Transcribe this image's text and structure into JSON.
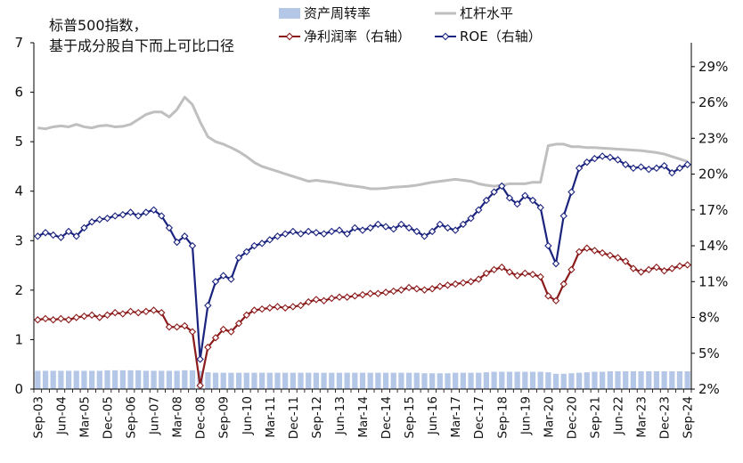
{
  "chart_data": {
    "type": "combo",
    "title": [
      "标普500指数，",
      "基于成分股自下而上可比口径"
    ],
    "categories": [
      "Sep-03",
      "Dec-03",
      "Mar-04",
      "Jun-04",
      "Sep-04",
      "Dec-04",
      "Mar-05",
      "Jun-05",
      "Sep-05",
      "Dec-05",
      "Mar-06",
      "Jun-06",
      "Sep-06",
      "Dec-06",
      "Mar-07",
      "Jun-07",
      "Sep-07",
      "Dec-07",
      "Mar-08",
      "Jun-08",
      "Sep-08",
      "Dec-08",
      "Mar-09",
      "Jun-09",
      "Sep-09",
      "Dec-09",
      "Mar-10",
      "Jun-10",
      "Sep-10",
      "Dec-10",
      "Mar-11",
      "Jun-11",
      "Sep-11",
      "Dec-11",
      "Mar-12",
      "Jun-12",
      "Sep-12",
      "Dec-12",
      "Mar-13",
      "Jun-13",
      "Sep-13",
      "Dec-13",
      "Mar-14",
      "Jun-14",
      "Sep-14",
      "Dec-14",
      "Mar-15",
      "Jun-15",
      "Sep-15",
      "Dec-15",
      "Mar-16",
      "Jun-16",
      "Sep-16",
      "Dec-16",
      "Mar-17",
      "Jun-17",
      "Sep-17",
      "Dec-17",
      "Mar-18",
      "Jun-18",
      "Sep-18",
      "Dec-18",
      "Mar-19",
      "Jun-19",
      "Sep-19",
      "Dec-19",
      "Mar-20",
      "Jun-20",
      "Sep-20",
      "Dec-20",
      "Mar-21",
      "Jun-21",
      "Sep-21",
      "Dec-21",
      "Mar-22",
      "Jun-22",
      "Sep-22",
      "Dec-22",
      "Mar-23",
      "Jun-23",
      "Sep-23",
      "Dec-23",
      "Mar-24",
      "Jun-24",
      "Sep-24"
    ],
    "x_tick_labels": [
      "Sep-03",
      "Jun-04",
      "Mar-05",
      "Dec-05",
      "Sep-06",
      "Jun-07",
      "Mar-08",
      "Dec-08",
      "Sep-09",
      "Jun-10",
      "Mar-11",
      "Dec-11",
      "Sep-12",
      "Jun-13",
      "Mar-14",
      "Dec-14",
      "Sep-15",
      "Jun-16",
      "Mar-17",
      "Dec-17",
      "Sep-18",
      "Jun-19",
      "Mar-20",
      "Dec-20",
      "Sep-21",
      "Jun-22",
      "Mar-23",
      "Dec-23",
      "Sep-24"
    ],
    "left_axis": {
      "ylim": [
        0,
        7
      ],
      "ticks": [
        "0",
        "1",
        "2",
        "3",
        "4",
        "5",
        "6",
        "7"
      ]
    },
    "right_axis": {
      "ylim": [
        0.02,
        0.31
      ],
      "ticks": [
        "2%",
        "5%",
        "8%",
        "11%",
        "14%",
        "17%",
        "20%",
        "23%",
        "26%",
        "29%"
      ],
      "tick_values": [
        0.02,
        0.05,
        0.08,
        0.11,
        0.14,
        0.17,
        0.2,
        0.23,
        0.26,
        0.29
      ]
    },
    "series": [
      {
        "name": "资产周转率",
        "type": "bar",
        "axis": "left",
        "color": "#b4c7e7",
        "values": [
          0.37,
          0.37,
          0.37,
          0.37,
          0.37,
          0.37,
          0.37,
          0.37,
          0.37,
          0.38,
          0.38,
          0.38,
          0.38,
          0.38,
          0.37,
          0.37,
          0.37,
          0.37,
          0.37,
          0.38,
          0.38,
          0.37,
          0.34,
          0.33,
          0.33,
          0.33,
          0.33,
          0.33,
          0.33,
          0.33,
          0.33,
          0.33,
          0.33,
          0.33,
          0.33,
          0.33,
          0.33,
          0.33,
          0.33,
          0.33,
          0.33,
          0.33,
          0.33,
          0.33,
          0.33,
          0.33,
          0.33,
          0.33,
          0.33,
          0.33,
          0.32,
          0.32,
          0.32,
          0.32,
          0.33,
          0.33,
          0.33,
          0.33,
          0.34,
          0.35,
          0.35,
          0.35,
          0.35,
          0.35,
          0.35,
          0.35,
          0.34,
          0.31,
          0.31,
          0.32,
          0.33,
          0.34,
          0.35,
          0.35,
          0.36,
          0.36,
          0.36,
          0.36,
          0.36,
          0.36,
          0.36,
          0.36,
          0.36,
          0.36,
          0.36
        ]
      },
      {
        "name": "杠杆水平",
        "type": "line",
        "axis": "left",
        "color": "#bfbfbf",
        "values": [
          5.28,
          5.26,
          5.3,
          5.32,
          5.3,
          5.35,
          5.3,
          5.28,
          5.32,
          5.33,
          5.3,
          5.31,
          5.35,
          5.45,
          5.55,
          5.6,
          5.6,
          5.5,
          5.65,
          5.9,
          5.75,
          5.4,
          5.1,
          5.0,
          4.95,
          4.88,
          4.8,
          4.7,
          4.58,
          4.5,
          4.45,
          4.4,
          4.35,
          4.3,
          4.25,
          4.2,
          4.22,
          4.2,
          4.18,
          4.15,
          4.12,
          4.1,
          4.08,
          4.05,
          4.05,
          4.06,
          4.08,
          4.09,
          4.1,
          4.12,
          4.15,
          4.18,
          4.2,
          4.22,
          4.24,
          4.22,
          4.2,
          4.15,
          4.12,
          4.1,
          4.12,
          4.15,
          4.15,
          4.15,
          4.18,
          4.18,
          4.92,
          4.95,
          4.95,
          4.9,
          4.9,
          4.88,
          4.88,
          4.87,
          4.86,
          4.85,
          4.84,
          4.83,
          4.82,
          4.8,
          4.78,
          4.75,
          4.7,
          4.65,
          4.6
        ]
      },
      {
        "name": "净利润率（右轴）",
        "type": "line",
        "axis": "right",
        "color": "#8b1a1a",
        "marker": "diamond",
        "values": [
          0.078,
          0.079,
          0.078,
          0.079,
          0.078,
          0.08,
          0.081,
          0.082,
          0.08,
          0.082,
          0.084,
          0.083,
          0.085,
          0.084,
          0.085,
          0.086,
          0.084,
          0.072,
          0.072,
          0.073,
          0.068,
          0.023,
          0.055,
          0.063,
          0.07,
          0.068,
          0.075,
          0.082,
          0.086,
          0.087,
          0.088,
          0.089,
          0.088,
          0.089,
          0.09,
          0.093,
          0.095,
          0.094,
          0.096,
          0.097,
          0.097,
          0.098,
          0.099,
          0.1,
          0.1,
          0.101,
          0.102,
          0.103,
          0.105,
          0.104,
          0.103,
          0.104,
          0.106,
          0.107,
          0.108,
          0.109,
          0.11,
          0.112,
          0.117,
          0.12,
          0.122,
          0.118,
          0.115,
          0.117,
          0.116,
          0.114,
          0.098,
          0.094,
          0.108,
          0.12,
          0.135,
          0.138,
          0.136,
          0.134,
          0.132,
          0.13,
          0.127,
          0.121,
          0.118,
          0.12,
          0.122,
          0.119,
          0.121,
          0.123,
          0.124
        ]
      },
      {
        "name": "ROE（右轴）",
        "type": "line",
        "axis": "right",
        "color": "#1a237e",
        "marker": "diamond",
        "values": [
          0.148,
          0.151,
          0.149,
          0.147,
          0.152,
          0.148,
          0.155,
          0.16,
          0.162,
          0.163,
          0.165,
          0.166,
          0.168,
          0.165,
          0.168,
          0.17,
          0.165,
          0.155,
          0.143,
          0.148,
          0.14,
          0.045,
          0.09,
          0.11,
          0.115,
          0.112,
          0.13,
          0.135,
          0.14,
          0.142,
          0.145,
          0.148,
          0.15,
          0.152,
          0.15,
          0.152,
          0.151,
          0.15,
          0.152,
          0.153,
          0.15,
          0.155,
          0.153,
          0.155,
          0.158,
          0.156,
          0.154,
          0.158,
          0.155,
          0.152,
          0.148,
          0.152,
          0.158,
          0.155,
          0.153,
          0.158,
          0.163,
          0.17,
          0.178,
          0.185,
          0.19,
          0.18,
          0.175,
          0.182,
          0.178,
          0.172,
          0.14,
          0.125,
          0.165,
          0.185,
          0.205,
          0.21,
          0.213,
          0.215,
          0.214,
          0.212,
          0.208,
          0.205,
          0.206,
          0.204,
          0.205,
          0.207,
          0.201,
          0.205,
          0.208
        ]
      }
    ],
    "legend": [
      {
        "label": "资产周转率",
        "kind": "bar",
        "color": "#b4c7e7"
      },
      {
        "label": "杠杆水平",
        "kind": "line",
        "color": "#bfbfbf"
      },
      {
        "label": "净利润率（右轴）",
        "kind": "marker-line",
        "color": "#8b1a1a"
      },
      {
        "label": "ROE（右轴）",
        "kind": "marker-line",
        "color": "#1a237e"
      }
    ],
    "legend_placement": "top-center"
  }
}
